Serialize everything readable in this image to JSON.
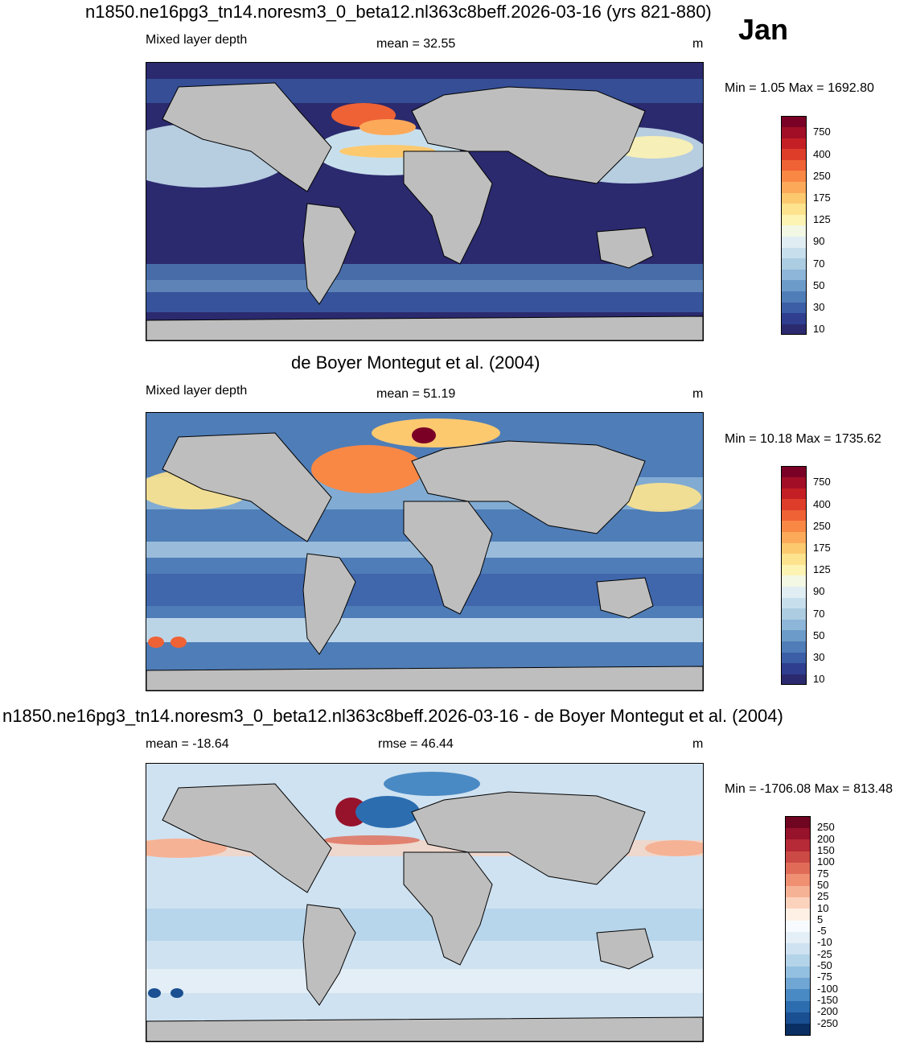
{
  "header": {
    "title": "n1850.ne16pg3_tn14.noresm3_0_beta12.nl363c8beff.2026-03-16 (yrs 821-880)",
    "month": "Jan"
  },
  "panels": [
    {
      "id": "model",
      "left_label": "Mixed layer depth",
      "center_label": "mean =  32.55",
      "units": "m",
      "minmax": "Min =   1.05 Max = 1692.80"
    },
    {
      "id": "obs",
      "title": "de Boyer Montegut et al. (2004)",
      "left_label": "Mixed layer depth",
      "center_label": "mean =  51.19",
      "units": "m",
      "minmax": "Min =  10.18 Max = 1735.62"
    },
    {
      "id": "diff",
      "title": "n1850.ne16pg3_tn14.noresm3_0_beta12.nl363c8beff.2026-03-16 - de Boyer Montegut et al. (2004)",
      "left_label": "mean = -18.64",
      "center_label": "rmse =  46.44",
      "units": "m",
      "minmax": "Min = -1706.08 Max = 813.48"
    }
  ],
  "colorbars": {
    "mld": {
      "colors": [
        "#2b2a6e",
        "#2f3e8f",
        "#3b5ea6",
        "#4f7db7",
        "#6c9bc9",
        "#8db6d8",
        "#acccE2",
        "#c7dfec",
        "#e0eef4",
        "#f2f8e3",
        "#fdf3b3",
        "#fde38e",
        "#fdc96f",
        "#fcaa5a",
        "#f98845",
        "#ef6235",
        "#de3d2a",
        "#c41f25",
        "#a10e26",
        "#7a0025"
      ],
      "labels": [
        "10",
        "30",
        "50",
        "70",
        "90",
        "125",
        "175",
        "250",
        "400",
        "750"
      ]
    },
    "diff": {
      "colors": [
        "#0a2f63",
        "#1a4f91",
        "#2c6db0",
        "#4a8ac4",
        "#6fa6d3",
        "#93c0e0",
        "#b4d4ea",
        "#cfe2f1",
        "#e4eff7",
        "#f7fbff",
        "#fff0e6",
        "#fbd3bd",
        "#f6b295",
        "#ef9073",
        "#e06c58",
        "#cc4a45",
        "#b52a36",
        "#97122b",
        "#700521"
      ],
      "labels": [
        "-250",
        "-200",
        "-150",
        "-100",
        "-75",
        "-50",
        "-25",
        "-10",
        "-5",
        "5",
        "10",
        "25",
        "50",
        "75",
        "100",
        "150",
        "200",
        "250"
      ]
    }
  }
}
